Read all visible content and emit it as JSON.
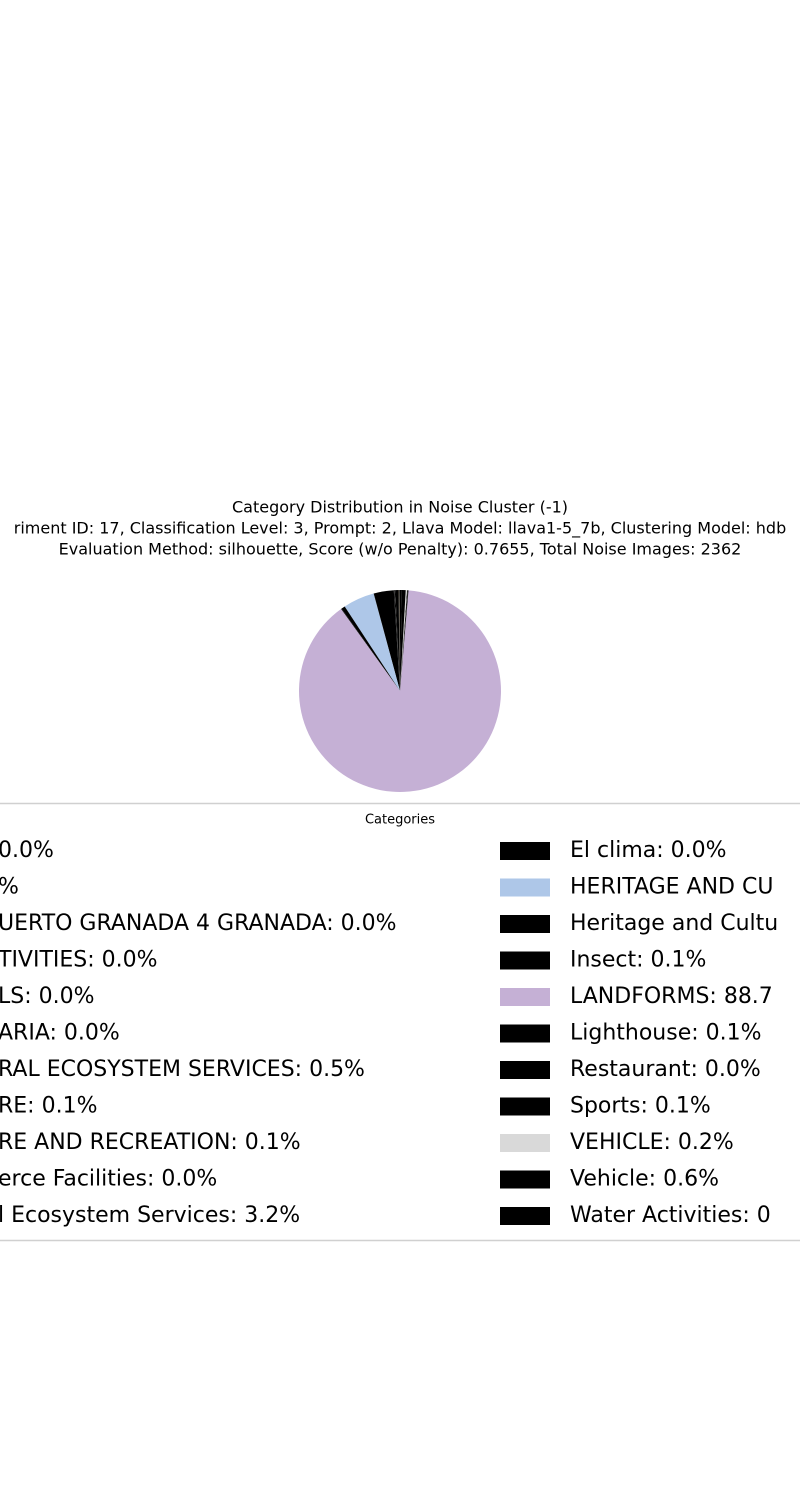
{
  "chart_data": {
    "type": "pie",
    "title": "Category Distribution in Noise Cluster (-1)",
    "subtitle": [
      "riment ID: 17, Classification Level: 3, Prompt: 2, Llava Model: llava1-5_7b, Clustering Model: hdb",
      "Evaluation Method: silhouette, Score (w/o Penalty): 0.7655, Total Noise Images: 2362"
    ],
    "legend_title": "Categories",
    "categories": [
      "0.0%",
      "%",
      "UERTO GRANADA 4 GRANADA: 0.0%",
      "TIVITIES: 0.0%",
      "LS: 0.0%",
      "ARIA: 0.0%",
      "RAL ECOSYSTEM SERVICES: 0.5%",
      "RE: 0.1%",
      "RE AND RECREATION: 0.1%",
      "erce Facilities: 0.0%",
      "l Ecosystem Services: 3.2%",
      "El clima: 0.0%",
      "HERITAGE AND CU",
      "Heritage and Cultu",
      "Insect: 0.1%",
      "LANDFORMS: 88.7",
      "Lighthouse: 0.1%",
      "Restaurant: 0.0%",
      "Sports: 0.1%",
      "VEHICLE: 0.2%",
      "Vehicle: 0.6%",
      "Water Activities: 0"
    ],
    "values": [
      0.04,
      0.04,
      0.04,
      0.04,
      0.04,
      0.04,
      0.5,
      0.1,
      0.1,
      0.04,
      3.2,
      0.04,
      5.0,
      0.6,
      0.1,
      88.7,
      0.1,
      0.04,
      0.1,
      0.2,
      0.6,
      0.3
    ],
    "colors": [
      "#000000",
      "#000000",
      "#000000",
      "#000000",
      "#8c6d31",
      "#000000",
      "#000000",
      "#000000",
      "#000000",
      "#000000",
      "#000000",
      "#000000",
      "#aec7e8",
      "#000000",
      "#000000",
      "#c5b0d5",
      "#000000",
      "#000000",
      "#000000",
      "#d9d9d9",
      "#000000",
      "#000000"
    ],
    "start_angle": 90
  }
}
